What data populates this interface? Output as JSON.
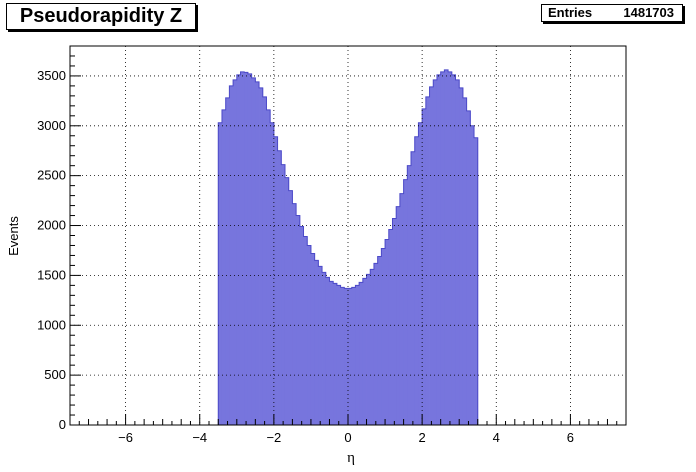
{
  "title": "Pseudorapidity Z",
  "stats": {
    "label": "Entries",
    "value": "1481703"
  },
  "colors": {
    "fill": "#7775dd",
    "line": "#4b49c8",
    "frame": "#000000"
  },
  "chart_data": {
    "type": "histogram",
    "xlabel": "η",
    "ylabel": "Events",
    "xlim": [
      -7.5,
      7.5
    ],
    "ylim": [
      0,
      3800
    ],
    "grid": true,
    "xticks": [
      -6,
      -4,
      -2,
      0,
      2,
      4,
      6
    ],
    "xtick_labels": [
      "−6",
      "−4",
      "−2",
      "0",
      "2",
      "4",
      "6"
    ],
    "yticks": [
      0,
      500,
      1000,
      1500,
      2000,
      2500,
      3000,
      3500
    ],
    "ytick_labels": [
      "0",
      "500",
      "1000",
      "1500",
      "2000",
      "2500",
      "3000",
      "3500"
    ],
    "bin_width": 0.1,
    "bin_centers": [
      -3.45,
      -3.35,
      -3.25,
      -3.15,
      -3.05,
      -2.95,
      -2.85,
      -2.75,
      -2.65,
      -2.55,
      -2.45,
      -2.35,
      -2.25,
      -2.15,
      -2.05,
      -1.95,
      -1.85,
      -1.75,
      -1.65,
      -1.55,
      -1.45,
      -1.35,
      -1.25,
      -1.15,
      -1.05,
      -0.95,
      -0.85,
      -0.75,
      -0.65,
      -0.55,
      -0.45,
      -0.35,
      -0.25,
      -0.15,
      -0.05,
      0.05,
      0.15,
      0.25,
      0.35,
      0.45,
      0.55,
      0.65,
      0.75,
      0.85,
      0.95,
      1.05,
      1.15,
      1.25,
      1.35,
      1.45,
      1.55,
      1.65,
      1.75,
      1.85,
      1.95,
      2.05,
      2.15,
      2.25,
      2.35,
      2.45,
      2.55,
      2.65,
      2.75,
      2.85,
      2.95,
      3.05,
      3.15,
      3.25,
      3.35,
      3.45
    ],
    "values": [
      3030,
      3160,
      3280,
      3400,
      3460,
      3510,
      3540,
      3535,
      3520,
      3480,
      3440,
      3380,
      3290,
      3160,
      3030,
      2890,
      2750,
      2610,
      2480,
      2350,
      2220,
      2100,
      1990,
      1890,
      1800,
      1720,
      1650,
      1590,
      1530,
      1480,
      1440,
      1420,
      1400,
      1380,
      1370,
      1370,
      1380,
      1400,
      1430,
      1470,
      1510,
      1560,
      1620,
      1690,
      1770,
      1860,
      1960,
      2070,
      2190,
      2320,
      2460,
      2600,
      2740,
      2890,
      3030,
      3170,
      3290,
      3390,
      3460,
      3510,
      3540,
      3560,
      3540,
      3510,
      3460,
      3380,
      3280,
      3150,
      3000,
      2880
    ]
  }
}
